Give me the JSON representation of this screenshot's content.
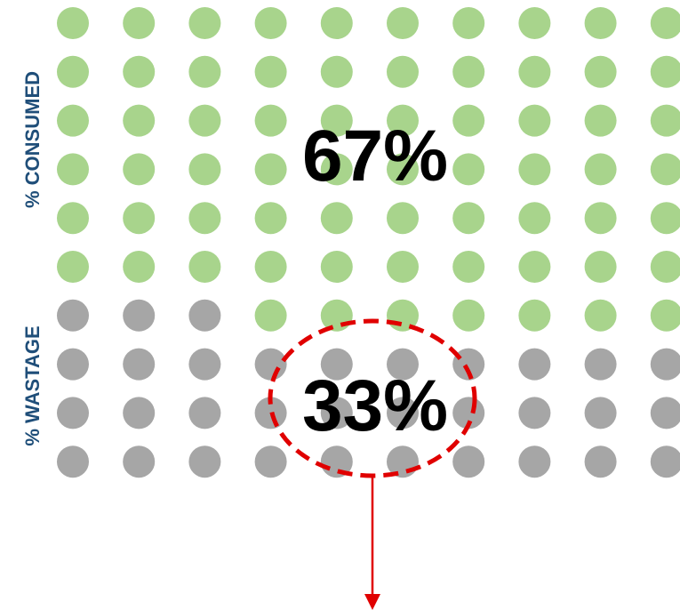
{
  "chart_data": {
    "type": "waffle",
    "rows": 10,
    "cols": 10,
    "series": [
      {
        "name": "% CONSUMED",
        "value": 67,
        "label": "67%",
        "color": "#a8d48c"
      },
      {
        "name": "% WASTAGE",
        "value": 33,
        "label": "33%",
        "color": "#a6a6a6"
      }
    ],
    "wastage_highlight": {
      "shape": "dashed-ellipse",
      "color": "#e00000",
      "arrow": "down"
    },
    "label_color": "#1f4e79",
    "value_text_color": "#000000"
  }
}
